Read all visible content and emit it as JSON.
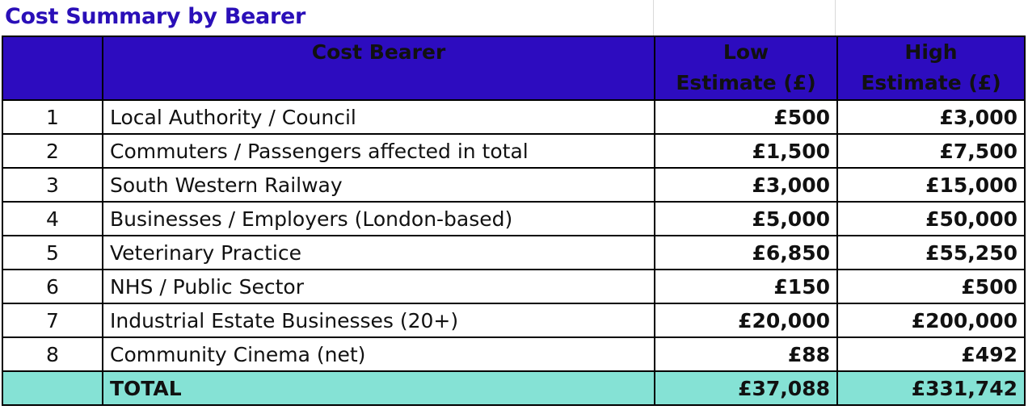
{
  "title": "Cost Summary by Bearer",
  "headers": {
    "num": "",
    "bearer": "Cost Bearer",
    "low_line1": "Low",
    "low_line2": "Estimate (£)",
    "high_line1": "High",
    "high_line2": "Estimate (£)"
  },
  "rows": [
    {
      "num": "1",
      "bearer": "Local Authority / Council",
      "low": "£500",
      "high": "£3,000"
    },
    {
      "num": "2",
      "bearer": "Commuters / Passengers affected in total",
      "low": "£1,500",
      "high": "£7,500"
    },
    {
      "num": "3",
      "bearer": "South Western Railway",
      "low": "£3,000",
      "high": "£15,000"
    },
    {
      "num": "4",
      "bearer": "Businesses / Employers (London-based)",
      "low": "£5,000",
      "high": "£50,000"
    },
    {
      "num": "5",
      "bearer": "Veterinary Practice",
      "low": "£6,850",
      "high": "£55,250"
    },
    {
      "num": "6",
      "bearer": "NHS / Public Sector",
      "low": "£150",
      "high": "£500"
    },
    {
      "num": "7",
      "bearer": "Industrial Estate Businesses (20+)",
      "low": "£20,000",
      "high": "£200,000"
    },
    {
      "num": "8",
      "bearer": "Community Cinema (net)",
      "low": "£88",
      "high": "£492"
    }
  ],
  "total": {
    "num": "",
    "bearer": "TOTAL",
    "low": "£37,088",
    "high": "£331,742"
  },
  "colors": {
    "title": "#2a0fb8",
    "header_bg": "#2d0cbf",
    "total_bg": "#85e2d5"
  }
}
